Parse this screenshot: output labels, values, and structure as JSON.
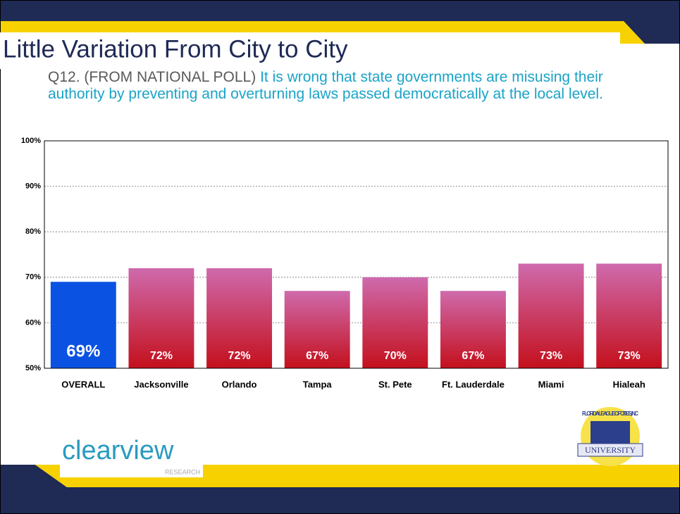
{
  "chart_data": {
    "type": "bar",
    "title": "Little Variation From City to City",
    "subtitle_prefix": "Q12. (FROM NATIONAL POLL)",
    "subtitle": "It is wrong that state governments are misusing their authority by preventing and overturning laws passed democratically at the local level.",
    "categories": [
      "OVERALL",
      "Jacksonville",
      "Orlando",
      "Tampa",
      "St. Pete",
      "Ft. Lauderdale",
      "Miami",
      "Hialeah"
    ],
    "values": [
      69,
      72,
      72,
      67,
      70,
      67,
      73,
      73
    ],
    "value_labels": [
      "69%",
      "72%",
      "72%",
      "67%",
      "70%",
      "67%",
      "73%",
      "73%"
    ],
    "colors": [
      "#0a52e2",
      "#cf6aad",
      "#cf6aad",
      "#cf6aad",
      "#cf6aad",
      "#cf6aad",
      "#cf6aad",
      "#cf6aad"
    ],
    "gradient_bottom": "#c4101c",
    "ylim": [
      50,
      100
    ],
    "yticks": [
      {
        "value": 50,
        "label": "50%"
      },
      {
        "value": 60,
        "label": "60%"
      },
      {
        "value": 70,
        "label": "70%"
      },
      {
        "value": 80,
        "label": "80%"
      },
      {
        "value": 90,
        "label": "90%"
      },
      {
        "value": 100,
        "label": "100%"
      }
    ],
    "grid": true
  },
  "logos": {
    "clearview": "clearview",
    "research": "RESEARCH",
    "league": "FLORIDA LEAGUE OF CITIES, INC",
    "university": "UNIVERSITY"
  }
}
